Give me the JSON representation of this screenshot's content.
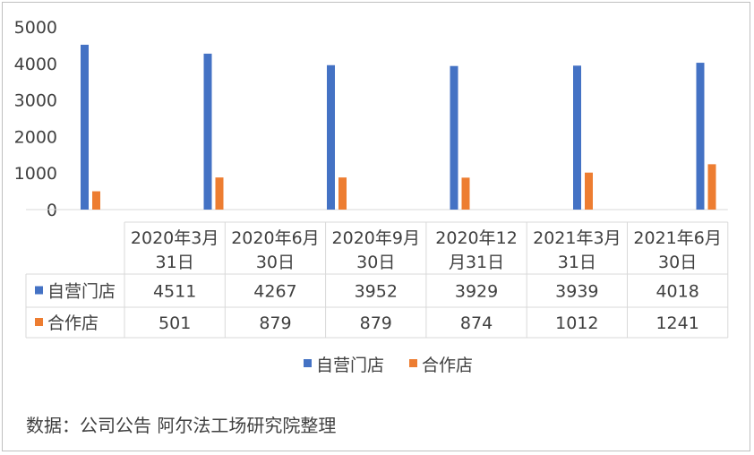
{
  "chart_data": {
    "type": "bar",
    "categories": [
      [
        "2020年3月",
        "31日"
      ],
      [
        "2020年6月",
        "30日"
      ],
      [
        "2020年9月",
        "30日"
      ],
      [
        "2020年12",
        "月31日"
      ],
      [
        "2021年3月",
        "31日"
      ],
      [
        "2021年6月",
        "30日"
      ]
    ],
    "series": [
      {
        "name": "自营门店",
        "color": "#4472c4",
        "values": [
          4511,
          4267,
          3952,
          3929,
          3939,
          4018
        ],
        "labels": [
          "4511",
          "4267",
          "3952",
          "3929",
          "3939",
          "4018"
        ]
      },
      {
        "name": "合作店",
        "color": "#ed7d31",
        "values": [
          501,
          879,
          879,
          874,
          1012,
          1241
        ],
        "labels": [
          "501",
          "879",
          "879",
          "874",
          "1012",
          "1241"
        ]
      }
    ],
    "yticks": [
      "0",
      "1000",
      "2000",
      "3000",
      "4000",
      "5000"
    ],
    "ylim": [
      0,
      5000
    ],
    "grid": false,
    "legend": "bottom",
    "data_table": true
  },
  "source": "数据：公司公告  阿尔法工场研究院整理"
}
